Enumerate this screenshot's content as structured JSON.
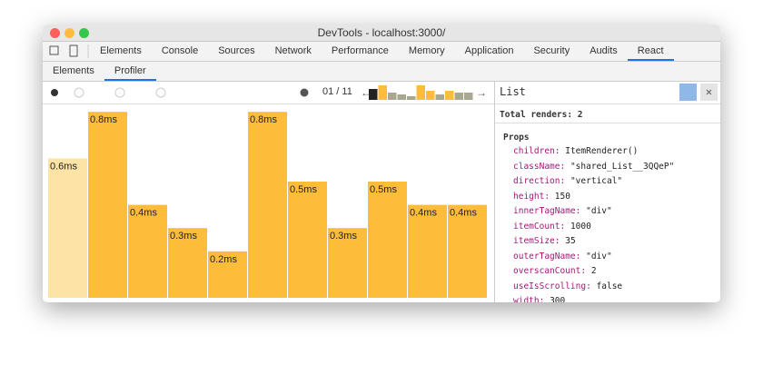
{
  "window": {
    "title": "DevTools - localhost:3000/"
  },
  "tabs": [
    "Elements",
    "Console",
    "Sources",
    "Network",
    "Performance",
    "Memory",
    "Application",
    "Security",
    "Audits",
    "React"
  ],
  "subtabs": [
    "Elements",
    "Profiler"
  ],
  "toolbar": {
    "commit_index": "01 / 11"
  },
  "commits": [
    {
      "label": "0.6ms",
      "value": 0.6
    },
    {
      "label": "0.8ms",
      "value": 0.8
    },
    {
      "label": "0.4ms",
      "value": 0.4
    },
    {
      "label": "0.3ms",
      "value": 0.3
    },
    {
      "label": "0.2ms",
      "value": 0.2
    },
    {
      "label": "0.8ms",
      "value": 0.8
    },
    {
      "label": "0.5ms",
      "value": 0.5
    },
    {
      "label": "0.3ms",
      "value": 0.3
    },
    {
      "label": "0.5ms",
      "value": 0.5
    },
    {
      "label": "0.4ms",
      "value": 0.4
    },
    {
      "label": "0.4ms",
      "value": 0.4
    }
  ],
  "panel": {
    "title": "List",
    "total_renders": "Total renders: 2",
    "props_heading": "Props",
    "props": [
      {
        "key": "children:",
        "value": "ItemRenderer()"
      },
      {
        "key": "className:",
        "value": "\"shared_List__3QQeP\""
      },
      {
        "key": "direction:",
        "value": "\"vertical\""
      },
      {
        "key": "height:",
        "value": "150"
      },
      {
        "key": "innerTagName:",
        "value": "\"div\""
      },
      {
        "key": "itemCount:",
        "value": "1000"
      },
      {
        "key": "itemSize:",
        "value": "35"
      },
      {
        "key": "outerTagName:",
        "value": "\"div\""
      },
      {
        "key": "overscanCount:",
        "value": "2"
      },
      {
        "key": "useIsScrolling:",
        "value": "false"
      },
      {
        "key": "width:",
        "value": "300"
      }
    ]
  }
}
